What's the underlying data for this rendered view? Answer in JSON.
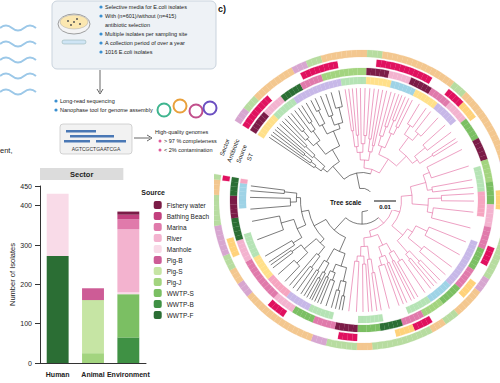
{
  "workflow": {
    "partial_label": "ent,",
    "bullets": [
      [
        "Selective media for E.coli isolates"
      ],
      [
        "With (n=601)/without (n=415)",
        "antibiotic selection"
      ],
      [
        "Multiple isolates per sampling site"
      ],
      [
        "A collection period of over a year"
      ],
      [
        "1016 E.coli isolates"
      ]
    ],
    "sequencing": [
      "Long-read sequencing",
      "Nanophase tool for genome assembly"
    ],
    "sequence": "AGTCGCTGAATCGA",
    "genomes": {
      "title": "High-quality genomes",
      "criteria": [
        "> 97 % completeness",
        "< 2% contamination"
      ]
    }
  },
  "chart_data": {
    "type": "bar",
    "title": "Sector",
    "categories": [
      "Human",
      "Animal",
      "Environment"
    ],
    "y_label": "Number of Isolates",
    "legend": "right",
    "legend_title": "Source",
    "stacked": true,
    "grid": false,
    "ylim": [
      0,
      450
    ],
    "yticks": [
      0,
      100,
      200,
      300,
      400
    ],
    "series": [
      {
        "name": "Fishery water",
        "color": "#7b1c47",
        "values": [
          0,
          0,
          8
        ]
      },
      {
        "name": "Bathing Beach",
        "color": "#c2407e",
        "values": [
          0,
          0,
          12
        ]
      },
      {
        "name": "Marina",
        "color": "#e07aab",
        "values": [
          0,
          0,
          25
        ]
      },
      {
        "name": "River",
        "color": "#f3b3cf",
        "values": [
          0,
          0,
          160
        ]
      },
      {
        "name": "Manhole",
        "color": "#f9dbe8",
        "values": [
          158,
          0,
          5
        ]
      },
      {
        "name": "Pig-B",
        "color": "#cd5c96",
        "values": [
          0,
          30,
          0
        ]
      },
      {
        "name": "Pig-S",
        "color": "#c6e5a4",
        "values": [
          0,
          135,
          0
        ]
      },
      {
        "name": "Pig-J",
        "color": "#a3d47f",
        "values": [
          0,
          25,
          0
        ]
      },
      {
        "name": "WWTP-S",
        "color": "#7bbf63",
        "values": [
          0,
          0,
          110
        ]
      },
      {
        "name": "WWTP-B",
        "color": "#3f9144",
        "values": [
          0,
          0,
          65
        ]
      },
      {
        "name": "WWTP-F",
        "color": "#2b6e34",
        "values": [
          272,
          0,
          0
        ]
      }
    ]
  },
  "tree": {
    "panel": "c)",
    "rings": [
      "Sector",
      "Antibiotic",
      "Source",
      "ST"
    ],
    "scale_title": "Tree scale",
    "scale_value": "0.01"
  }
}
